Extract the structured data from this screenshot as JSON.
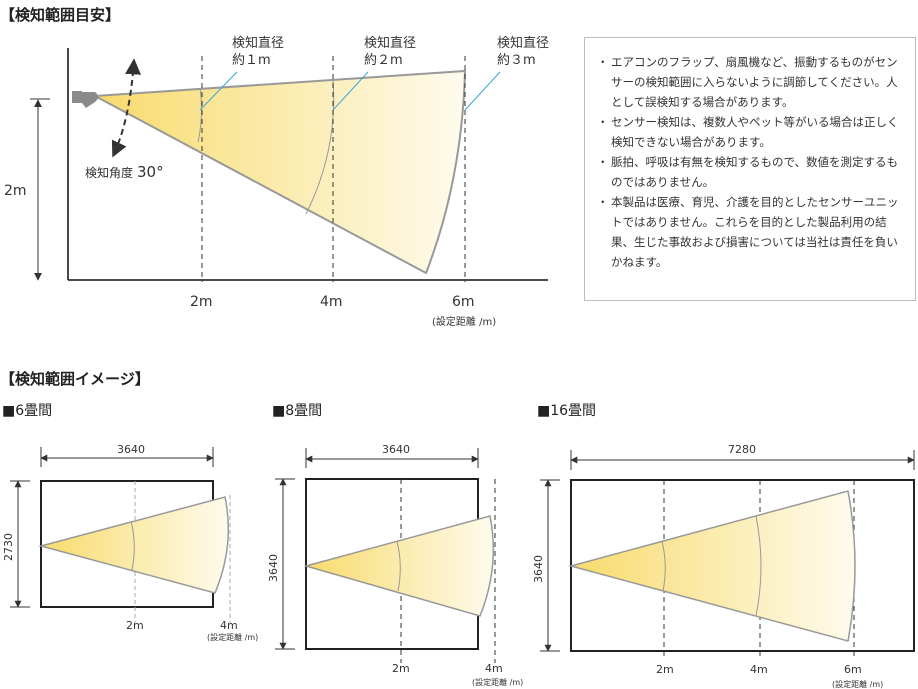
{
  "section1": {
    "title": "【検知範囲目安】",
    "height_label": "2m",
    "angle_label": "検知角度",
    "angle_value": "30°",
    "diameters": [
      {
        "line1": "検知直径",
        "line2": "約１m"
      },
      {
        "line1": "検知直径",
        "line2": "約２m"
      },
      {
        "line1": "検知直径",
        "line2": "約３m"
      }
    ],
    "distance_ticks": [
      "2m",
      "4m",
      "6m"
    ],
    "distance_unit": "(設定距離 /m)"
  },
  "notes": [
    "エアコンのフラップ、扇風機など、振動するものがセンサーの検知範囲に入らないように調節してください。人として誤検知する場合があります。",
    "センサー検知は、複数人やペット等がいる場合は正しく検知できない場合があります。",
    "脈拍、呼吸は有無を検知するもので、数値を測定するものではありません。",
    "本製品は医療、育児、介護を目的としたセンサーユニットではありません。これらを目的とした製品利用の結果、生じた事故および損害については当社は責任を負いかねます。"
  ],
  "section2": {
    "title": "【検知範囲イメージ】",
    "rooms": [
      {
        "name": "■6畳間",
        "width": "3640",
        "depth": "2730",
        "ticks": [
          "2m",
          "4m"
        ],
        "unit": "(設定距離 /m)"
      },
      {
        "name": "■8畳間",
        "width": "3640",
        "depth": "3640",
        "ticks": [
          "2m",
          "4m"
        ],
        "unit": "(設定距離 /m)"
      },
      {
        "name": "■16畳間",
        "width": "7280",
        "depth": "3640",
        "ticks": [
          "2m",
          "4m",
          "6m"
        ],
        "unit": "(設定距離 /m)"
      }
    ]
  },
  "colors": {
    "cone_start": "#f8db6c",
    "cone_end": "#fefbee",
    "accent_line": "#3aa9d8",
    "axis": "#333333",
    "cone_edge": "#999999"
  }
}
